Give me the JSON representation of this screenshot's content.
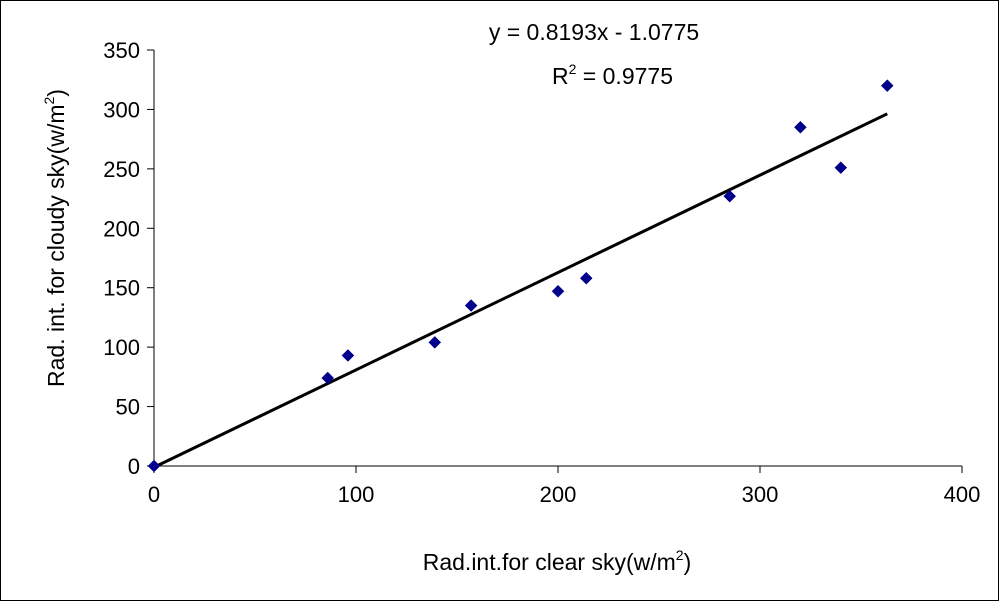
{
  "chart_data": {
    "type": "scatter",
    "xlabel": "Rad.int.for clear sky(w/m²)",
    "ylabel": "Rad. int. for cloudy sky(w/m²)",
    "xlabel_parts": {
      "main": "Rad.int.for clear sky(w/m",
      "sup": "2",
      "end": ")"
    },
    "ylabel_parts": {
      "main": "Rad. int. for cloudy sky(w/m",
      "sup": "2",
      "end": ")"
    },
    "xlim": [
      0,
      400
    ],
    "ylim": [
      0,
      350
    ],
    "xticks": [
      0,
      100,
      200,
      300,
      400
    ],
    "yticks": [
      0,
      50,
      100,
      150,
      200,
      250,
      300,
      350
    ],
    "grid": false,
    "legend": "none",
    "series": [
      {
        "marker": "diamond",
        "color": "#00008B",
        "points": [
          {
            "x": 0,
            "y": 0
          },
          {
            "x": 86,
            "y": 74
          },
          {
            "x": 96,
            "y": 93
          },
          {
            "x": 139,
            "y": 104
          },
          {
            "x": 157,
            "y": 135
          },
          {
            "x": 200,
            "y": 147
          },
          {
            "x": 214,
            "y": 158
          },
          {
            "x": 285,
            "y": 227
          },
          {
            "x": 320,
            "y": 285
          },
          {
            "x": 340,
            "y": 251
          },
          {
            "x": 363,
            "y": 320
          }
        ]
      }
    ],
    "trendline": {
      "type": "linear",
      "slope": 0.8193,
      "intercept": -1.0775,
      "x_range": [
        0,
        363
      ],
      "color": "#000000"
    },
    "annotations": {
      "equation": "y = 0.8193x - 1.0775",
      "r2_prefix": "R",
      "r2_sup": "2",
      "r2_value": " = 0.9775"
    }
  }
}
